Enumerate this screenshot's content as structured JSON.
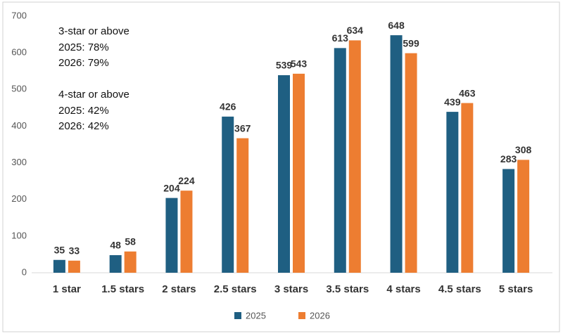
{
  "chart_data": {
    "type": "bar",
    "categories": [
      "1 star",
      "1.5 stars",
      "2 stars",
      "2.5 stars",
      "3 stars",
      "3.5 stars",
      "4 stars",
      "4.5 stars",
      "5 stars"
    ],
    "series": [
      {
        "name": "2025",
        "color": "#1f5f82",
        "values": [
          35,
          48,
          204,
          426,
          539,
          613,
          648,
          439,
          283
        ]
      },
      {
        "name": "2026",
        "color": "#ed7d31",
        "values": [
          33,
          58,
          224,
          367,
          543,
          634,
          599,
          463,
          308
        ]
      }
    ],
    "ylim": [
      0,
      700
    ],
    "yticks": [
      0,
      100,
      200,
      300,
      400,
      500,
      600,
      700
    ],
    "grid": false,
    "legend": "bottom",
    "annotations": [
      "3-star or above",
      "2025: 78%",
      "2026: 79%",
      "4-star or above",
      "2025: 42%",
      "2026: 42%"
    ]
  }
}
